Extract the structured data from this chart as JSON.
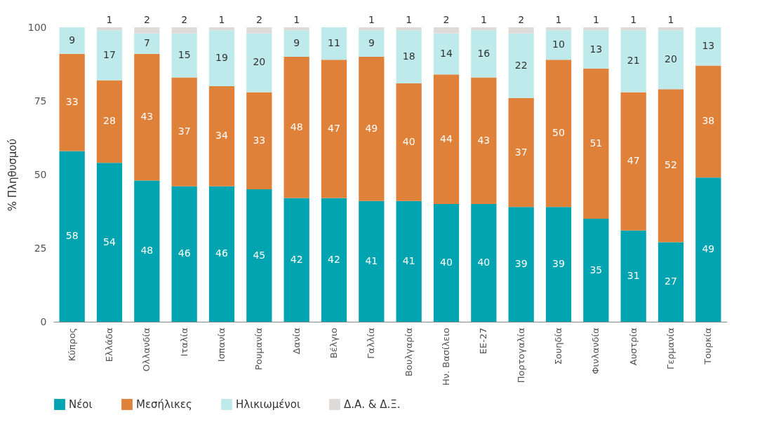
{
  "chart_data": {
    "type": "bar",
    "stacked": true,
    "ylabel": "% Πληθυσμού",
    "categories": [
      "Κύπρος",
      "Ελλάδα",
      "Ολλανδία",
      "Ιταλία",
      "Ισπανία",
      "Ρουμανία",
      "Δανία",
      "Βέλγιο",
      "Γαλλία",
      "Βουλγαρία",
      "Ην. Βασίλειο",
      "ΕΕ-27",
      "Πορτογαλία",
      "Σουηδία",
      "Φινλανδία",
      "Αυστρία",
      "Γερμανία",
      "Τουρκία"
    ],
    "series": [
      {
        "name": "Νέοι",
        "color": "#00a3b0",
        "values": [
          58,
          54,
          48,
          46,
          46,
          45,
          42,
          42,
          41,
          41,
          40,
          40,
          39,
          39,
          35,
          31,
          27,
          49
        ]
      },
      {
        "name": "Μεσήλικες",
        "color": "#e0813a",
        "values": [
          33,
          28,
          43,
          37,
          34,
          33,
          48,
          47,
          49,
          40,
          44,
          43,
          37,
          50,
          51,
          47,
          52,
          38
        ]
      },
      {
        "name": "Ηλικιωμένοι",
        "color": "#bfeaec",
        "values": [
          9,
          17,
          7,
          15,
          19,
          20,
          9,
          11,
          9,
          18,
          14,
          16,
          22,
          10,
          13,
          21,
          20,
          13
        ]
      },
      {
        "name": "Δ.Α. & Δ.Ξ.",
        "color": "#dedad7",
        "values": [
          null,
          1,
          2,
          2,
          1,
          2,
          1,
          null,
          1,
          1,
          2,
          1,
          2,
          1,
          1,
          1,
          1,
          null
        ]
      }
    ],
    "ylim": [
      0,
      100
    ],
    "yticks": [
      0,
      25,
      50,
      75,
      100
    ],
    "grid": false,
    "legend": "bottom",
    "data_labels": true
  }
}
